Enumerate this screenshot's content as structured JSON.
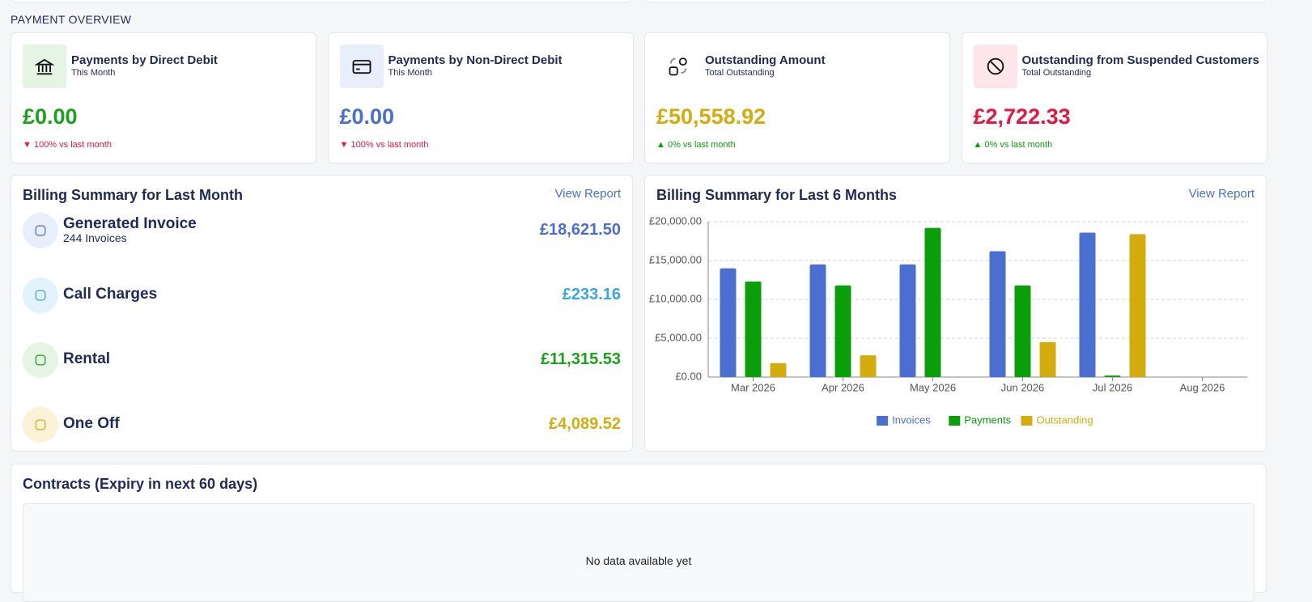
{
  "section_title": "PAYMENT OVERVIEW",
  "cards": [
    {
      "title": "Payments by Direct Debit",
      "subtitle": "This Month",
      "amount": "£0.00",
      "change": "100% vs last month",
      "trend": "down",
      "color": "#1aa31a",
      "icon_bg": "#e6f4e6"
    },
    {
      "title": "Payments by Non-Direct Debit",
      "subtitle": "This Month",
      "amount": "£0.00",
      "change": "100% vs last month",
      "trend": "down",
      "color": "#4a6fd1",
      "icon_bg": "#e9eefb"
    },
    {
      "title": "Outstanding Amount",
      "subtitle": "Total Outstanding",
      "amount": "£50,558.92",
      "change": "0% vs last month",
      "trend": "up",
      "color": "#d4ac0d",
      "icon_bg": "#ffffff"
    },
    {
      "title": "Outstanding from Suspended Customers",
      "subtitle": "Total Outstanding",
      "amount": "£2,722.33",
      "change": "0% vs last month",
      "trend": "up",
      "color": "#e8173f",
      "icon_bg": "#fde6ea"
    }
  ],
  "billing_summary": {
    "title": "Billing Summary for Last Month",
    "link": "View Report",
    "items": [
      {
        "label": "Generated Invoice",
        "sub": "244 Invoices",
        "amount": "£18,621.50",
        "color": "#4a6fd1",
        "icon_bg": "#e9eefb"
      },
      {
        "label": "Call Charges",
        "amount": "£233.16",
        "color": "#3aa6e0",
        "icon_bg": "#e3f3fc"
      },
      {
        "label": "Rental",
        "amount": "£11,315.53",
        "color": "#1aa31a",
        "icon_bg": "#e6f4e6"
      },
      {
        "label": "One Off",
        "amount": "£4,089.52",
        "color": "#d4ac0d",
        "icon_bg": "#fbf2d8"
      }
    ]
  },
  "chart_data": {
    "type": "bar",
    "title": "Billing Summary for Last 6 Months",
    "link": "View Report",
    "categories": [
      "Mar 2026",
      "Apr 2026",
      "May 2026",
      "Jun 2026",
      "Jul 2026",
      "Aug 2026"
    ],
    "series": [
      {
        "name": "Invoices",
        "color": "#4a6fd1",
        "values": [
          14000,
          14500,
          14500,
          16200,
          18600,
          0
        ]
      },
      {
        "name": "Payments",
        "color": "#0a9e0a",
        "values": [
          12300,
          11800,
          19200,
          11800,
          200,
          0
        ]
      },
      {
        "name": "Outstanding",
        "color": "#d4ac0d",
        "values": [
          1800,
          2800,
          0,
          4500,
          18400,
          0
        ]
      }
    ],
    "ylim": [
      0,
      20000
    ],
    "yticks": [
      {
        "value": 0,
        "label": "£0.00"
      },
      {
        "value": 5000,
        "label": "£5,000.00"
      },
      {
        "value": 10000,
        "label": "£10,000.00"
      },
      {
        "value": 15000,
        "label": "£15,000.00"
      },
      {
        "value": 20000,
        "label": "£20,000.00"
      }
    ],
    "grid": true,
    "legend": "bottom"
  },
  "contracts": {
    "title": "Contracts (Expiry in next 60 days)",
    "empty": "No data available yet"
  }
}
